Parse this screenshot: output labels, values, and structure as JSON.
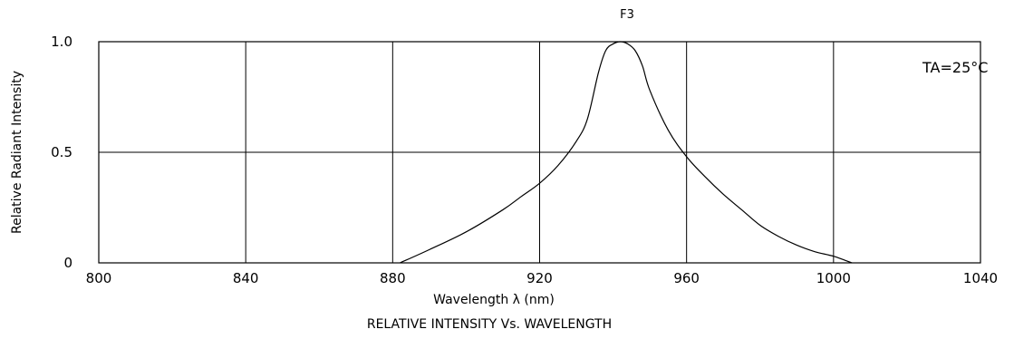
{
  "chart_data": {
    "type": "line",
    "top_label": "F3",
    "title": "RELATIVE INTENSITY Vs. WAVELENGTH",
    "xlabel": "Wavelength λ (nm)",
    "ylabel": "Relative Radiant Intensity",
    "xlim": [
      800,
      1040
    ],
    "ylim": [
      0,
      1.0
    ],
    "x_ticks": [
      800,
      840,
      880,
      920,
      960,
      1000,
      1040
    ],
    "x_tick_labels": [
      "800",
      "840",
      "880",
      "920",
      "960",
      "1000",
      "1040"
    ],
    "y_tick_labels": [
      {
        "value": 0,
        "label": "0"
      },
      {
        "value": 0.5,
        "label": "0.5"
      },
      {
        "value": 1.0,
        "label": "1.0"
      }
    ],
    "grid": true,
    "annotation": "TA=25°C",
    "series": [
      {
        "x": [
          882,
          890,
          900,
          910,
          915,
          920,
          925,
          930,
          933,
          936,
          938,
          940,
          942,
          944,
          946,
          948,
          950,
          955,
          960,
          965,
          970,
          975,
          980,
          985,
          990,
          995,
          1000,
          1005
        ],
        "y": [
          0.0,
          0.06,
          0.14,
          0.24,
          0.3,
          0.36,
          0.44,
          0.55,
          0.65,
          0.86,
          0.96,
          0.99,
          1.0,
          0.99,
          0.96,
          0.89,
          0.78,
          0.6,
          0.48,
          0.39,
          0.31,
          0.24,
          0.17,
          0.12,
          0.08,
          0.05,
          0.03,
          0.0
        ]
      }
    ]
  }
}
